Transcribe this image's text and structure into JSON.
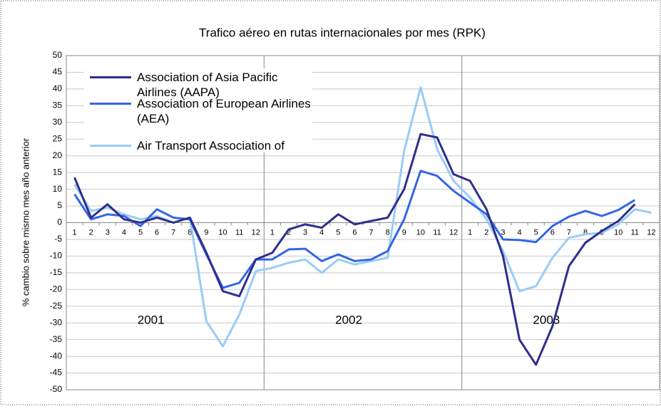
{
  "chart_data": {
    "type": "line",
    "title": "Trafico aéreo en rutas internacionales por mes (RPK)",
    "y_label": "% cambio sobre mismo mes año anterior",
    "annotations": [
      "2001",
      "2002",
      "2003"
    ],
    "categories": [
      "1",
      "2",
      "3",
      "4",
      "5",
      "6",
      "7",
      "8",
      "9",
      "10",
      "11",
      "12",
      "1",
      "2",
      "3",
      "4",
      "5",
      "6",
      "7",
      "8",
      "9",
      "10",
      "11",
      "12",
      "1",
      "2",
      "3",
      "4",
      "5",
      "6",
      "7",
      "8",
      "9",
      "10",
      "11",
      "12"
    ],
    "series": [
      {
        "name": "Association of Asia Pacific Airlines (AAPA)",
        "color": "#2e2f8c",
        "values": [
          13.5,
          1.5,
          5.5,
          1,
          0,
          1.5,
          0,
          1.5,
          -9,
          -20.5,
          -22,
          -11,
          -9,
          -2,
          -0.5,
          -1.5,
          2.5,
          -0.5,
          0.5,
          1.5,
          10,
          26.5,
          25.5,
          14.5,
          12.5,
          4,
          -10,
          -35,
          -42.5,
          -31,
          -13,
          -6,
          -2.5,
          0.5,
          5.5,
          null
        ]
      },
      {
        "name": "Association of European Airlines (AEA)",
        "color": "#3366e6",
        "values": [
          8.5,
          1,
          2.5,
          2,
          -1,
          4,
          1.5,
          1,
          -9.5,
          -19.5,
          -18,
          -11,
          -11,
          -8,
          -7.8,
          -11.5,
          -9.5,
          -11.5,
          -11,
          -8.5,
          1,
          15.5,
          14,
          9.5,
          6,
          2.5,
          -5,
          -5.2,
          -5.8,
          -1,
          1.8,
          3.5,
          2,
          3.8,
          6.8,
          null
        ]
      },
      {
        "name": "Air Transport Association of America",
        "color": "#99ccf5",
        "values": [
          11.5,
          3.5,
          4.5,
          2.5,
          1,
          2,
          0,
          1.5,
          -29.5,
          -37,
          -27.5,
          -14.5,
          -13.5,
          -12,
          -11,
          -15,
          -11,
          -12.5,
          -11.5,
          -10.5,
          21.5,
          40.5,
          22,
          12.5,
          7.5,
          1,
          -8.5,
          -20.5,
          -19,
          -10.5,
          -4.5,
          -3.5,
          -3,
          -0.5,
          4,
          3
        ]
      }
    ],
    "ylim": [
      -50,
      50
    ],
    "yticks": [
      50,
      45,
      40,
      35,
      30,
      25,
      20,
      15,
      10,
      5,
      0,
      -5,
      -10,
      -15,
      -20,
      -25,
      -30,
      -35,
      -40,
      -45,
      -50
    ],
    "grid": true
  }
}
